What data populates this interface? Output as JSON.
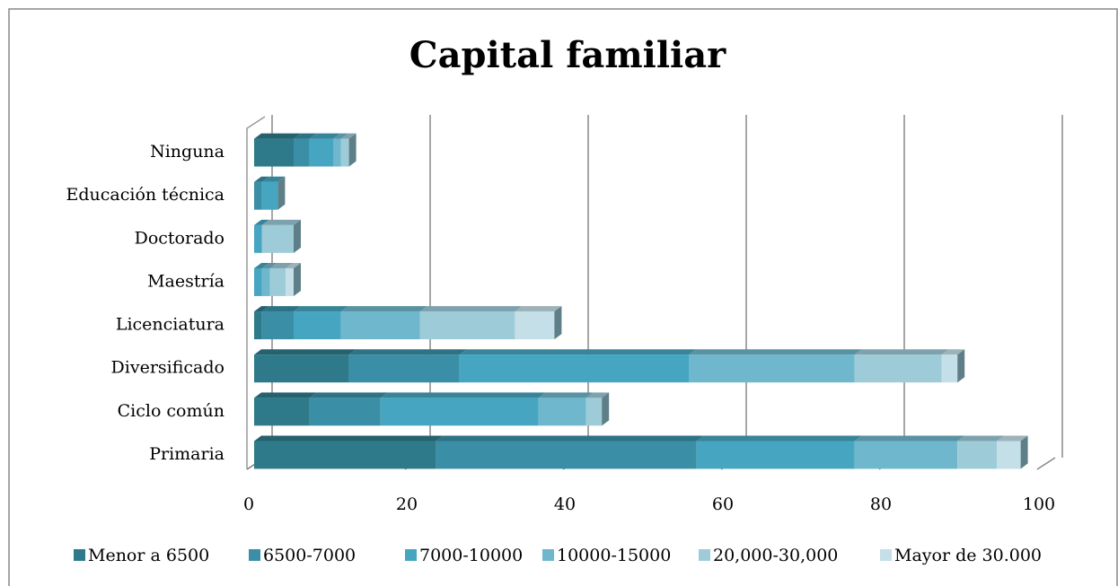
{
  "chart_data": {
    "type": "bar",
    "orientation": "horizontal",
    "stacked": true,
    "title": "Capital familiar",
    "categories": [
      "Ninguna",
      "Educación técnica",
      "Doctorado",
      "Maestría",
      "Licenciatura",
      "Diversificado",
      "Ciclo común",
      "Primaria"
    ],
    "series": [
      {
        "name": "Menor a 6500",
        "color": "#2f7a8a",
        "values": [
          5,
          0,
          0,
          0,
          1,
          12,
          7,
          23
        ]
      },
      {
        "name": "6500-7000",
        "color": "#3a8ea6",
        "values": [
          2,
          1,
          0,
          0,
          4,
          14,
          9,
          33
        ]
      },
      {
        "name": "7000-10000",
        "color": "#46a6c1",
        "values": [
          3,
          2,
          1,
          1,
          6,
          29,
          20,
          20
        ]
      },
      {
        "name": "10000-15000",
        "color": "#6fb7cc",
        "values": [
          1,
          0,
          0,
          1,
          10,
          21,
          6,
          13
        ]
      },
      {
        "name": "20,000-30,000",
        "color": "#9ecbd8",
        "values": [
          1,
          0,
          4,
          2,
          12,
          11,
          2,
          5
        ]
      },
      {
        "name": "Mayor de 30.000",
        "color": "#c4dfe7",
        "values": [
          0,
          0,
          0,
          1,
          5,
          2,
          0,
          3
        ]
      }
    ],
    "xlim": [
      0,
      100
    ],
    "xticks": [
      0,
      20,
      40,
      60,
      80,
      100
    ],
    "grid": true,
    "legend": "bottom"
  }
}
